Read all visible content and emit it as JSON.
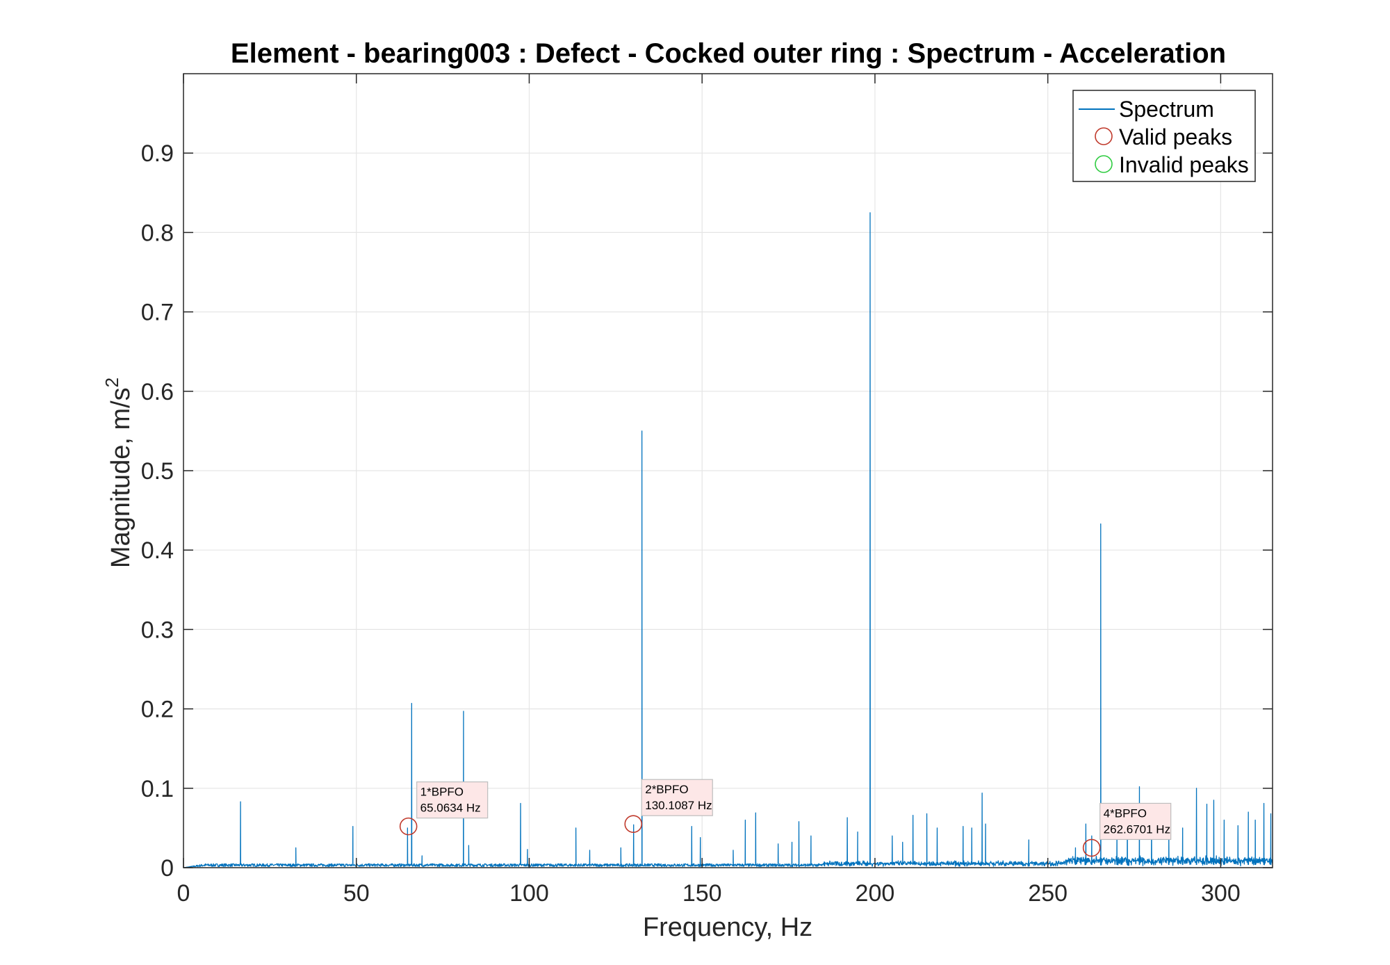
{
  "chart_data": {
    "type": "line",
    "title": "Element - bearing003 : Defect - Cocked outer ring : Spectrum - Acceleration",
    "xlabel": "Frequency, Hz",
    "ylabel_main": "Magnitude, m/s",
    "ylabel_sup": "2",
    "xlim": [
      0,
      315
    ],
    "ylim": [
      0,
      1.0
    ],
    "xticks": [
      0,
      50,
      100,
      150,
      200,
      250,
      300
    ],
    "yticks": [
      0,
      0.1,
      0.2,
      0.3,
      0.4,
      0.5,
      0.6,
      0.7,
      0.8,
      0.9
    ],
    "ytick_labels": [
      "0",
      "0.1",
      "0.2",
      "0.3",
      "0.4",
      "0.5",
      "0.6",
      "0.7",
      "0.8",
      "0.9"
    ],
    "grid": true,
    "legend_position": "top-right",
    "legend": {
      "spectrum": "Spectrum",
      "valid": "Valid peaks",
      "invalid": "Invalid peaks"
    },
    "colors": {
      "spectrum": "#0072BD",
      "valid": "#C0392B",
      "invalid": "#2ECC40",
      "annotation_bg": "#FDE7E7",
      "grid": "#E5E5E5",
      "axis": "#262626"
    },
    "noise_floor": 0.004,
    "spectrum_peaks": [
      [
        16.5,
        0.083
      ],
      [
        32.5,
        0.025
      ],
      [
        49.0,
        0.052
      ],
      [
        64.8,
        0.05
      ],
      [
        66.0,
        0.207
      ],
      [
        69.0,
        0.015
      ],
      [
        81.0,
        0.197
      ],
      [
        82.5,
        0.028
      ],
      [
        97.5,
        0.081
      ],
      [
        99.5,
        0.023
      ],
      [
        113.5,
        0.05
      ],
      [
        117.5,
        0.022
      ],
      [
        126.5,
        0.025
      ],
      [
        130.2,
        0.054
      ],
      [
        132.6,
        0.55
      ],
      [
        147.0,
        0.052
      ],
      [
        149.5,
        0.038
      ],
      [
        159.0,
        0.022
      ],
      [
        162.5,
        0.06
      ],
      [
        165.5,
        0.069
      ],
      [
        172.0,
        0.03
      ],
      [
        176.0,
        0.032
      ],
      [
        178.0,
        0.058
      ],
      [
        181.5,
        0.04
      ],
      [
        192.0,
        0.063
      ],
      [
        195.0,
        0.045
      ],
      [
        198.6,
        0.825
      ],
      [
        205.0,
        0.04
      ],
      [
        208.0,
        0.032
      ],
      [
        211.0,
        0.066
      ],
      [
        215.0,
        0.068
      ],
      [
        218.0,
        0.05
      ],
      [
        225.5,
        0.052
      ],
      [
        228.0,
        0.05
      ],
      [
        231.0,
        0.094
      ],
      [
        232.0,
        0.055
      ],
      [
        244.5,
        0.035
      ],
      [
        258.0,
        0.025
      ],
      [
        261.0,
        0.055
      ],
      [
        262.7,
        0.04
      ],
      [
        265.3,
        0.433
      ],
      [
        270.0,
        0.05
      ],
      [
        273.0,
        0.065
      ],
      [
        276.5,
        0.102
      ],
      [
        280.0,
        0.058
      ],
      [
        285.0,
        0.045
      ],
      [
        289.0,
        0.05
      ],
      [
        293.0,
        0.1
      ],
      [
        296.0,
        0.08
      ],
      [
        298.0,
        0.085
      ],
      [
        301.0,
        0.06
      ],
      [
        305.0,
        0.053
      ],
      [
        308.0,
        0.07
      ],
      [
        310.0,
        0.06
      ],
      [
        312.5,
        0.081
      ],
      [
        314.5,
        0.068
      ]
    ],
    "valid_peaks": [
      {
        "x": 65.0634,
        "y": 0.052,
        "label_order": "1*BPFO",
        "label_freq": "65.0634 Hz"
      },
      {
        "x": 130.1087,
        "y": 0.055,
        "label_order": "2*BPFO",
        "label_freq": "130.1087 Hz"
      },
      {
        "x": 262.6701,
        "y": 0.025,
        "label_order": "4*BPFO",
        "label_freq": "262.6701 Hz"
      }
    ],
    "invalid_peaks": []
  }
}
